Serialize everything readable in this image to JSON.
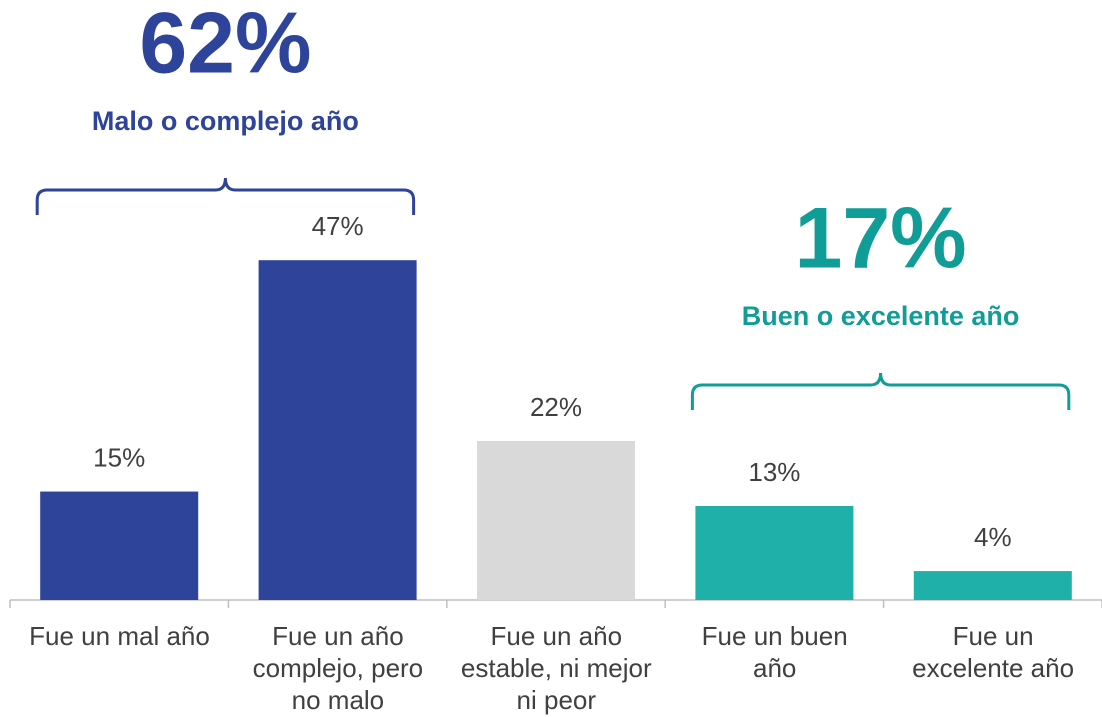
{
  "chart_data": {
    "type": "bar",
    "categories": [
      "Fue un mal año",
      "Fue un año\ncomplejo, pero\nno malo",
      "Fue un año\nestable, ni mejor\nni peor",
      "Fue un buen\naño",
      "Fue un\nexcelente año"
    ],
    "values": [
      15,
      47,
      22,
      13,
      4
    ],
    "value_labels": [
      "15%",
      "47%",
      "22%",
      "13%",
      "4%"
    ],
    "colors": [
      "#2e449b",
      "#2e449b",
      "#d9d9d9",
      "#20b0aa",
      "#20b0aa"
    ],
    "annotations": [
      {
        "text": "62%",
        "label": "Malo o complejo año",
        "color": "#2e449b"
      },
      {
        "text": "17%",
        "label": "Buen o excelente año",
        "color": "#119d97"
      }
    ]
  }
}
